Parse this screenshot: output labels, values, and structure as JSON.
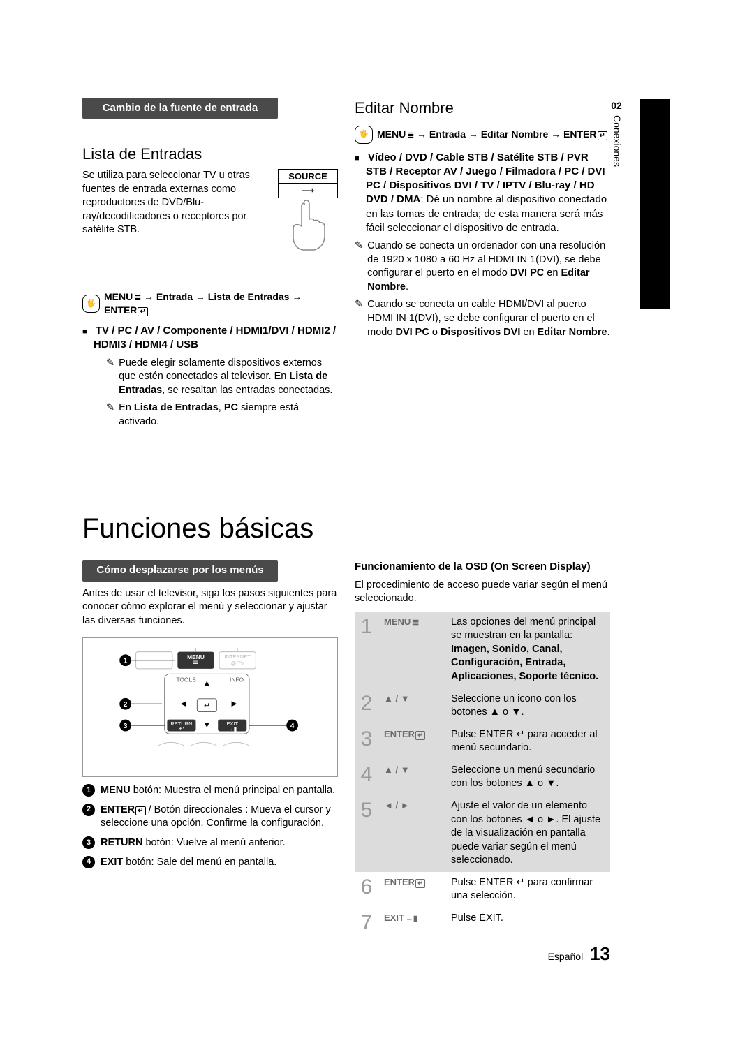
{
  "sidebar": {
    "chapter_num": "02",
    "chapter_label": "Conexiones"
  },
  "black_strip_color": "#000000",
  "col_left": {
    "bar": "Cambio de la fuente de entrada",
    "heading": "Lista de Entradas",
    "intro": "Se utiliza para seleccionar TV u otras fuentes de entrada externas como reproductores de DVD/Blu-ray/decodificadores o receptores por satélite STB.",
    "source_label": "SOURCE",
    "menu_path": "MENU → Entrada → Lista de Entradas → ENTER",
    "bullet1_bold": "TV / PC / AV / Componente / HDMI1/DVI / HDMI2 / HDMI3 / HDMI4 / USB",
    "note1a": "Puede elegir solamente dispositivos externos que estén conectados al televisor. En ",
    "note1a_bold": "Lista de Entradas",
    "note1a_cont": ", se resaltan las entradas conectadas.",
    "note1b_a": "En ",
    "note1b_bold": "Lista de Entradas",
    "note1b_b": ", ",
    "note1b_bold2": "PC",
    "note1b_c": " siempre está activado."
  },
  "col_right": {
    "heading": "Editar Nombre",
    "menu_path": "MENU → Entrada → Editar Nombre → ENTER",
    "bullet1_bold": "Vídeo / DVD / Cable STB / Satélite STB / PVR STB / Receptor AV / Juego / Filmadora / PC / DVI PC / Dispositivos DVI / TV / IPTV / Blu-ray / HD DVD / DMA",
    "bullet1_rest": ": Dé un nombre al dispositivo conectado en las tomas de entrada; de esta manera será más fácil seleccionar el dispositivo de entrada.",
    "note1": "Cuando se conecta un ordenador con una resolución de 1920 x 1080 a 60 Hz al HDMI IN 1(DVI), se debe configurar el puerto en el modo ",
    "note1_bold": "DVI PC",
    "note1_mid": " en ",
    "note1_bold2": "Editar Nombre",
    "note1_end": ".",
    "note2": "Cuando se conecta un cable HDMI/DVI al puerto HDMI IN 1(DVI), se debe configurar el puerto en el modo ",
    "note2_bold": "DVI PC",
    "note2_mid": " o ",
    "note2_bold2": "Dispositivos DVI",
    "note2_mid2": " en ",
    "note2_bold3": "Editar Nombre",
    "note2_end": "."
  },
  "big_title": "Funciones básicas",
  "sec2_left": {
    "bar": "Cómo desplazarse por los menús",
    "intro": "Antes de usar el televisor, siga los pasos siguientes para conocer cómo explorar el menú y seleccionar y ajustar las diversas funciones.",
    "remote_labels": {
      "menu": "MENU",
      "internet": "INTERNET",
      "at_tv": "@ TV",
      "tools": "TOOLS",
      "info": "INFO",
      "return": "RETURN",
      "exit": "EXIT"
    },
    "items": [
      {
        "n": "1",
        "bold": "MENU",
        "text": " botón: Muestra el menú principal en pantalla."
      },
      {
        "n": "2",
        "bold": "ENTER",
        "text": " / Botón direccionales : Mueva el cursor y seleccione una opción. Confirme la configuración."
      },
      {
        "n": "3",
        "bold": "RETURN",
        "text": " botón: Vuelve al menú anterior."
      },
      {
        "n": "4",
        "bold": "EXIT",
        "text": " botón: Sale del menú en pantalla."
      }
    ]
  },
  "sec2_right": {
    "osd_title": "Funcionamiento de la OSD (On Screen Display)",
    "osd_intro": "El procedimiento de acceso puede variar según el menú seleccionado.",
    "rows": [
      {
        "step": "1",
        "btn": "MENU",
        "btn_icon": "menu",
        "grey": true,
        "text": "Las opciones del menú principal se muestran en la pantalla:",
        "bold": "Imagen, Sonido, Canal, Configuración, Entrada, Aplicaciones, Soporte técnico."
      },
      {
        "step": "2",
        "btn": "▲ / ▼",
        "grey": true,
        "text": "Seleccione un icono con los botones ▲ o ▼."
      },
      {
        "step": "3",
        "btn": "ENTER",
        "btn_icon": "enter",
        "grey": true,
        "text": "Pulse ENTER ↵ para acceder al menú secundario."
      },
      {
        "step": "4",
        "btn": "▲ / ▼",
        "grey": true,
        "text": "Seleccione un menú secundario con los botones ▲ o ▼."
      },
      {
        "step": "5",
        "btn": "◄ / ►",
        "grey": true,
        "text": "Ajuste el valor de un elemento con los botones ◄ o ►. El ajuste de la visualización en pantalla puede variar según el menú seleccionado."
      },
      {
        "step": "6",
        "btn": "ENTER",
        "btn_icon": "enter",
        "grey": false,
        "text": "Pulse ENTER ↵ para confirmar una selección."
      },
      {
        "step": "7",
        "btn": "EXIT",
        "btn_icon": "exit",
        "grey": false,
        "text": "Pulse EXIT."
      }
    ]
  },
  "footer": {
    "lang": "Español",
    "page": "13"
  }
}
